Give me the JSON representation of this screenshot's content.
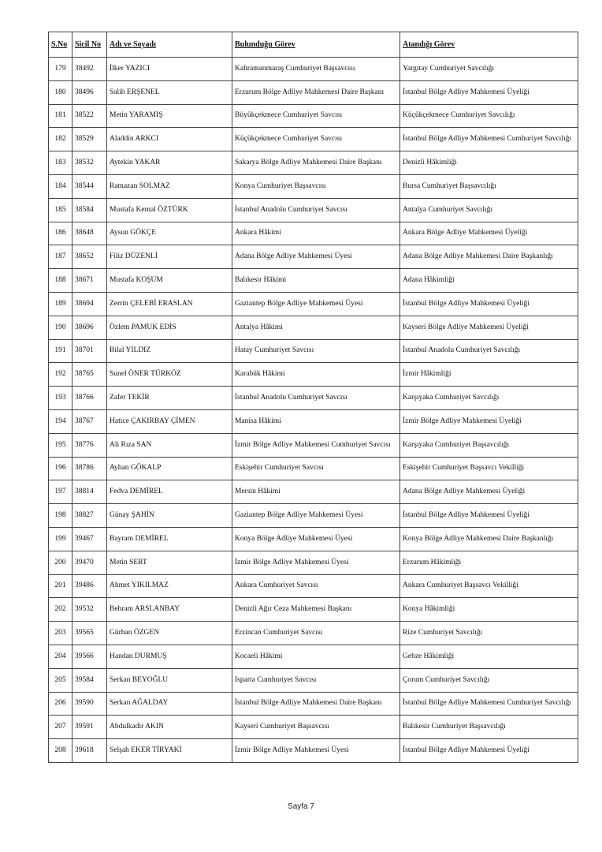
{
  "table": {
    "header": [
      "S.No",
      "Sicil No",
      "Adı ve Soyadı",
      "Bulunduğu Görev",
      "Atandığı Görev"
    ],
    "rows": [
      [
        179,
        38492,
        "İlker YAZICI",
        "Kahramanmaraş Cumhuriyet Başsavcısı",
        "Yargıtay Cumhuriyet Savcılığı"
      ],
      [
        180,
        38496,
        "Salih ERŞENEL",
        "Erzurum Bölge Adliye Mahkemesi Daire Başkanı",
        "İstanbul Bölge Adliye Mahkemesi Üyeliği"
      ],
      [
        181,
        38522,
        "Metin YARAMIŞ",
        "Büyükçekmece Cumhuriyet Savcısı",
        "Küçükçekmece Cumhuriyet Savcılığı"
      ],
      [
        182,
        38529,
        "Aladdin ARKCI",
        "Küçükçekmece Cumhuriyet Savcısı",
        "İstanbul Bölge Adliye Mahkemesi Cumhuriyet Savcılığı"
      ],
      [
        183,
        38532,
        "Aytekin YAKAR",
        "Sakarya Bölge Adliye Mahkemesi Daire Başkanı",
        "Denizli Hâkimliği"
      ],
      [
        184,
        38544,
        "Ramazan SOLMAZ",
        "Konya Cumhuriyet Başsavcısı",
        "Bursa Cumhuriyet Başsavcılığı"
      ],
      [
        185,
        38584,
        "Mustafa Kemal ÖZTÜRK",
        "İstanbul Anadolu Cumhuriyet Savcısı",
        "Antalya Cumhuriyet Savcılığı"
      ],
      [
        186,
        38648,
        "Aysun GÖKÇE",
        "Ankara Hâkimi",
        "Ankara Bölge Adliye Mahkemesi Üyeliği"
      ],
      [
        187,
        38652,
        "Filiz DÜZENLİ",
        "Adana Bölge Adliye Mahkemesi Üyesi",
        "Adana Bölge Adliye Mahkemesi Daire Başkanlığı"
      ],
      [
        188,
        38671,
        "Mustafa KOŞUM",
        "Balıkesir Hâkimi",
        "Adana Hâkimliği"
      ],
      [
        189,
        38694,
        "Zerrin ÇELEBİ ERASLAN",
        "Gaziantep Bölge Adliye Mahkemesi Üyesi",
        "İstanbul Bölge Adliye Mahkemesi Üyeliği"
      ],
      [
        190,
        38696,
        "Özlem PAMUK EDİS",
        "Antalya Hâkimi",
        "Kayseri Bölge Adliye Mahkemesi Üyeliği"
      ],
      [
        191,
        38701,
        "Bilal YILDIZ",
        "Hatay Cumhuriyet Savcısı",
        "İstanbul Anadolu Cumhuriyet Savcılığı"
      ],
      [
        192,
        38765,
        "Sunel ÖNER TÜRKÖZ",
        "Karabük Hâkimi",
        "İzmir Hâkimliği"
      ],
      [
        193,
        38766,
        "Zafer TEKİR",
        "İstanbul Anadolu Cumhuriyet Savcısı",
        "Karşıyaka Cumhuriyet Savcılığı"
      ],
      [
        194,
        38767,
        "Hatice ÇAKIRBAY ÇİMEN",
        "Manisa Hâkimi",
        "İzmir Bölge Adliye Mahkemesi Üyeliği"
      ],
      [
        195,
        38776,
        "Ali Rıza SAN",
        "İzmir Bölge Adliye Mahkemesi Cumhuriyet Savcısı",
        "Karşıyaka Cumhuriyet Başsavcılığı"
      ],
      [
        196,
        38786,
        "Ayhan GÖKALP",
        "Eskişehir Cumhuriyet Savcısı",
        "Eskişehir Cumhuriyet Başsavcı Vekilliği"
      ],
      [
        197,
        38814,
        "Fedva DEMİREL",
        "Mersin Hâkimi",
        "Adana Bölge Adliye Mahkemesi Üyeliği"
      ],
      [
        198,
        38827,
        "Günay ŞAHİN",
        "Gaziantep Bölge Adliye Mahkemesi Üyesi",
        "İstanbul Bölge Adliye Mahkemesi Üyeliği"
      ],
      [
        199,
        39467,
        "Bayram DEMİREL",
        "Konya Bölge Adliye Mahkemesi Üyesi",
        "Konya Bölge Adliye Mahkemesi Daire Başkanlığı"
      ],
      [
        200,
        39470,
        "Metin SERT",
        "İzmir Bölge Adliye Mahkemesi Üyesi",
        "Erzurum Hâkimliği"
      ],
      [
        201,
        39486,
        "Ahmet YIKILMAZ",
        "Ankara Cumhuriyet Savcısı",
        "Ankara Cumhuriyet Başsavcı Vekilliği"
      ],
      [
        202,
        39532,
        "Behram ARSLANBAY",
        "Denizli Ağır Ceza Mahkemesi Başkanı",
        "Konya Hâkimliği"
      ],
      [
        203,
        39565,
        "Gürhan ÖZGEN",
        "Erzincan Cumhuriyet Savcısı",
        "Rize Cumhuriyet Savcılığı"
      ],
      [
        204,
        39566,
        "Handan DURMUŞ",
        "Kocaeli Hâkimi",
        "Gebze Hâkimliği"
      ],
      [
        205,
        39584,
        "Serkan BEYOĞLU",
        "Isparta Cumhuriyet Savcısı",
        "Çorum Cumhuriyet Savcılığı"
      ],
      [
        206,
        39590,
        "Serkan AĞALDAY",
        "İstanbul Bölge Adliye Mahkemesi Daire Başkanı",
        "İstanbul Bölge Adliye Mahkemesi Cumhuriyet Savcılığı"
      ],
      [
        207,
        39591,
        "Abdulkadir AKIN",
        "Kayseri Cumhuriyet Başsavcısı",
        "Balıkesir Cumhuriyet Başsavcılığı"
      ],
      [
        208,
        39618,
        "Selşah EKER TİRYAKİ",
        "İzmir Bölge Adliye Mahkemesi Üyesi",
        "İstanbul Bölge Adliye Mahkemesi Üyeliği"
      ]
    ]
  },
  "footer": {
    "page": "Sayfa 7"
  }
}
